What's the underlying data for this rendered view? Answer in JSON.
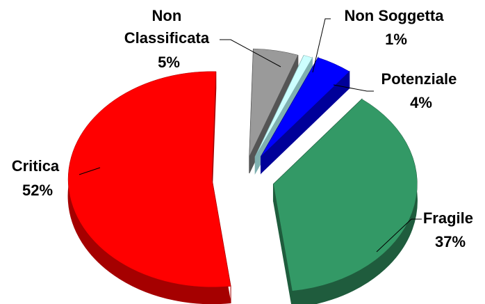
{
  "chart_data": {
    "type": "pie",
    "title": "",
    "legend": "none",
    "slices": [
      {
        "name": "Critica",
        "value": 52,
        "label": "52%",
        "color": "#ff0000",
        "side_color": "#a50000"
      },
      {
        "name": "Non Classificata",
        "value": 5,
        "label": "5%",
        "color": "#9a9a9a",
        "side_color": "#555555"
      },
      {
        "name": "Non Soggetta",
        "value": 1,
        "label": "1%",
        "color": "#ccffff",
        "side_color": "#7fb0b0"
      },
      {
        "name": "Potenziale",
        "value": 4,
        "label": "4%",
        "color": "#0000ff",
        "side_color": "#000099"
      },
      {
        "name": "Fragile",
        "value": 37,
        "label": "37%",
        "color": "#339966",
        "side_color": "#1f5c3d"
      }
    ]
  }
}
